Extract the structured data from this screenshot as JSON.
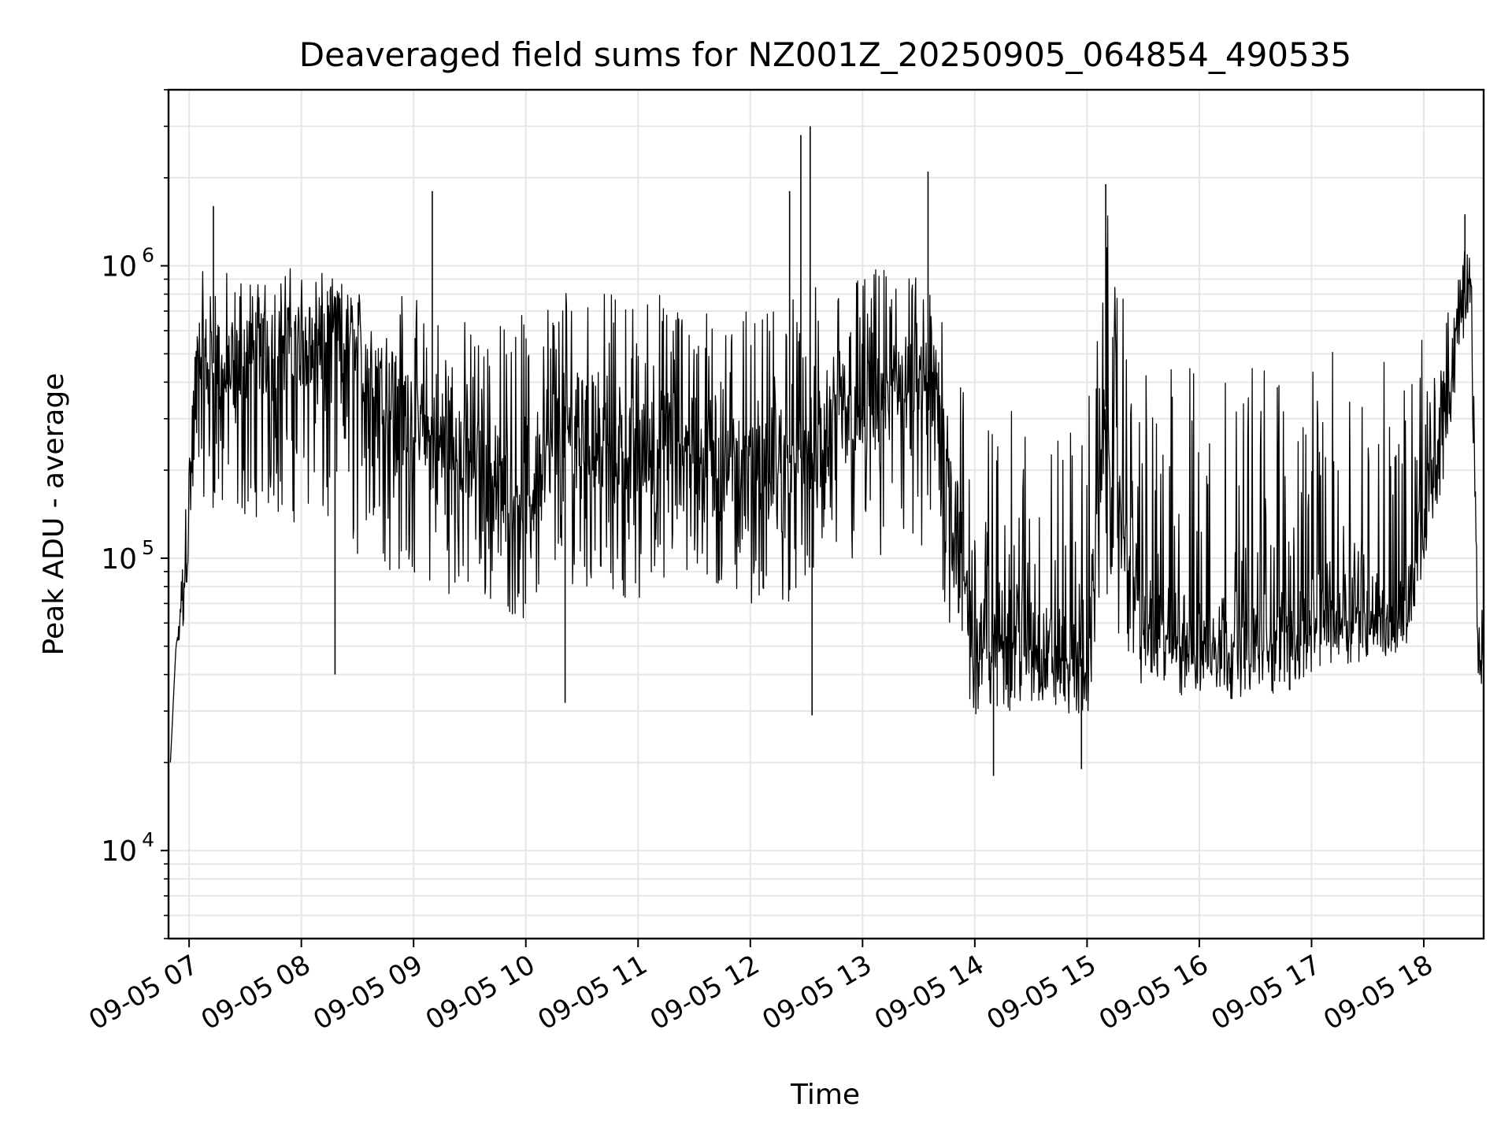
{
  "chart_data": {
    "type": "line",
    "title": "Deaveraged field sums for NZ001Z_20250905_064854_490535",
    "xlabel": "Time",
    "ylabel": "Peak ADU - average",
    "yscale": "log",
    "ylim": [
      5000,
      4000000
    ],
    "xlim": [
      "09-05 06:49",
      "09-05 18:32"
    ],
    "x_ticks": [
      {
        "label": "09-05 07",
        "value": "09-05 07:00"
      },
      {
        "label": "09-05 08",
        "value": "09-05 08:00"
      },
      {
        "label": "09-05 09",
        "value": "09-05 09:00"
      },
      {
        "label": "09-05 10",
        "value": "09-05 10:00"
      },
      {
        "label": "09-05 11",
        "value": "09-05 11:00"
      },
      {
        "label": "09-05 12",
        "value": "09-05 12:00"
      },
      {
        "label": "09-05 13",
        "value": "09-05 13:00"
      },
      {
        "label": "09-05 14",
        "value": "09-05 14:00"
      },
      {
        "label": "09-05 15",
        "value": "09-05 15:00"
      },
      {
        "label": "09-05 16",
        "value": "09-05 16:00"
      },
      {
        "label": "09-05 17",
        "value": "09-05 17:00"
      },
      {
        "label": "09-05 18",
        "value": "09-05 18:00"
      }
    ],
    "y_ticks": [
      {
        "base": "10",
        "exp": "4",
        "value": 10000
      },
      {
        "base": "10",
        "exp": "5",
        "value": 100000
      },
      {
        "base": "10",
        "exp": "6",
        "value": 1000000
      }
    ],
    "grid": true,
    "line_color": "#000000",
    "grid_color": "#e6e6e6",
    "series": [
      {
        "x": [
          "09-05 06:50",
          "09-05 06:53",
          "09-05 06:56",
          "09-05 07:05",
          "09-05 07:20",
          "09-05 07:40",
          "09-05 08:00",
          "09-05 08:20",
          "09-05 08:40",
          "09-05 09:00",
          "09-05 09:20",
          "09-05 09:40",
          "09-05 10:00",
          "09-05 10:20",
          "09-05 10:40",
          "09-05 11:00",
          "09-05 11:20",
          "09-05 11:40",
          "09-05 12:00",
          "09-05 12:20",
          "09-05 12:40",
          "09-05 13:00",
          "09-05 13:20",
          "09-05 13:40",
          "09-05 14:00",
          "09-05 14:20",
          "09-05 14:40",
          "09-05 15:00",
          "09-05 15:10",
          "09-05 15:30",
          "09-05 15:50",
          "09-05 16:10",
          "09-05 16:30",
          "09-05 16:50",
          "09-05 17:10",
          "09-05 17:30",
          "09-05 17:50",
          "09-05 18:10",
          "09-05 18:20",
          "09-05 18:25",
          "09-05 18:29",
          "09-05 18:32"
        ],
        "y": [
          20000,
          50000,
          65000,
          520000,
          420000,
          500000,
          540000,
          600000,
          420000,
          300000,
          240000,
          200000,
          160000,
          300000,
          250000,
          240000,
          300000,
          230000,
          200000,
          210000,
          240000,
          330000,
          430000,
          380000,
          50000,
          60000,
          48000,
          45000,
          330000,
          60000,
          55000,
          55000,
          55000,
          60000,
          70000,
          68000,
          60000,
          280000,
          700000,
          1000000,
          45000,
          58000
        ],
        "band_lo": [
          18000,
          45000,
          55000,
          170000,
          130000,
          140000,
          130000,
          110000,
          90000,
          85000,
          75000,
          70000,
          60000,
          80000,
          80000,
          70000,
          80000,
          75000,
          70000,
          70000,
          90000,
          90000,
          80000,
          80000,
          27000,
          30000,
          30000,
          28000,
          70000,
          35000,
          33000,
          33000,
          33000,
          35000,
          42000,
          45000,
          48000,
          180000,
          500000,
          700000,
          38000,
          42000
        ],
        "band_hi": [
          25000,
          60000,
          80000,
          950000,
          1000000,
          1000000,
          1000000,
          900000,
          850000,
          800000,
          700000,
          650000,
          700000,
          900000,
          800000,
          900000,
          800000,
          700000,
          700000,
          800000,
          900000,
          1000000,
          1000000,
          900000,
          300000,
          320000,
          300000,
          320000,
          1600000,
          420000,
          500000,
          480000,
          500000,
          460000,
          520000,
          520000,
          540000,
          600000,
          1100000,
          1300000,
          60000,
          70000
        ]
      }
    ],
    "spikes": [
      {
        "x": "09-05 07:13",
        "y": 1600000
      },
      {
        "x": "09-05 09:10",
        "y": 1800000
      },
      {
        "x": "09-05 12:27",
        "y": 2800000
      },
      {
        "x": "09-05 12:32",
        "y": 3000000
      },
      {
        "x": "09-05 12:21",
        "y": 1800000
      },
      {
        "x": "09-05 13:35",
        "y": 2100000
      },
      {
        "x": "09-05 15:10",
        "y": 1900000
      },
      {
        "x": "09-05 18:22",
        "y": 1500000
      },
      {
        "x": "09-05 12:33",
        "y": 29000
      },
      {
        "x": "09-05 14:10",
        "y": 18000
      },
      {
        "x": "09-05 14:57",
        "y": 19000
      },
      {
        "x": "09-05 10:21",
        "y": 32000
      },
      {
        "x": "09-05 08:18",
        "y": 40000
      }
    ]
  }
}
